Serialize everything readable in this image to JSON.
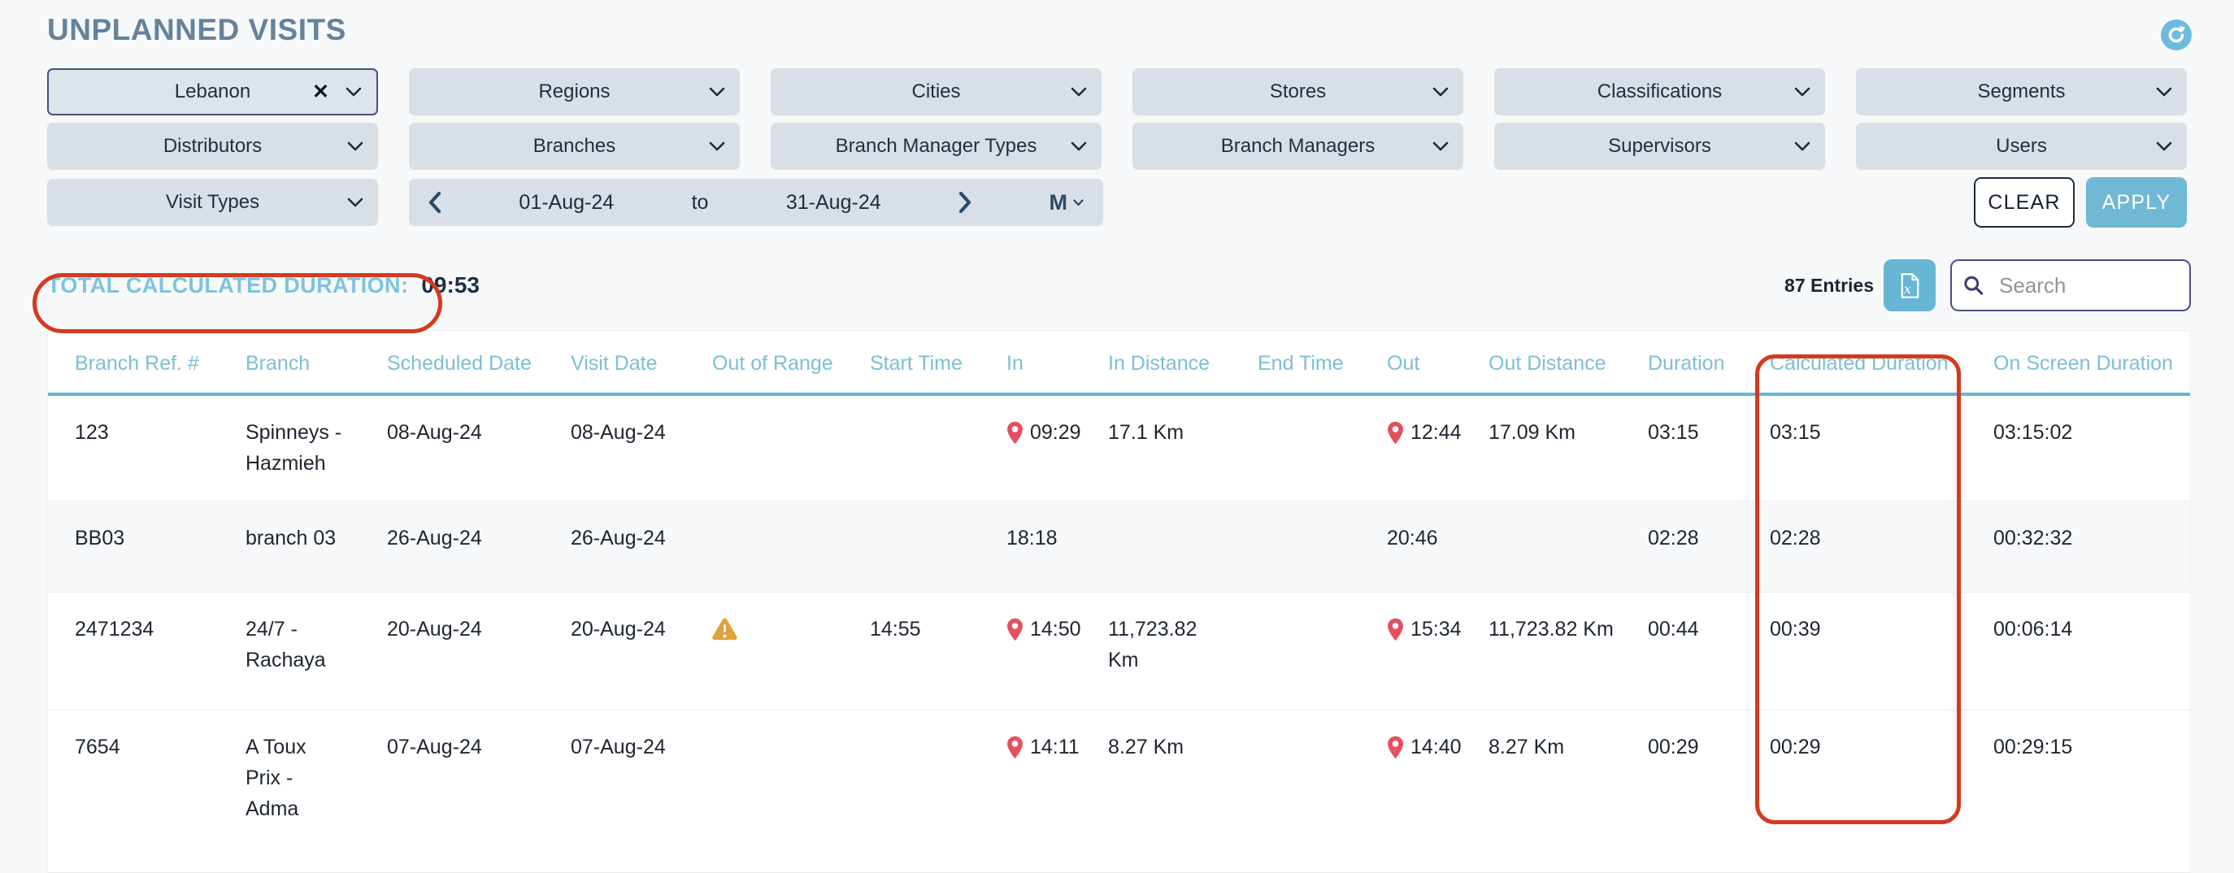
{
  "header": {
    "title": "UNPLANNED VISITS"
  },
  "filters": {
    "row1": [
      {
        "label": "Lebanon",
        "selected": true,
        "clearable": true
      },
      {
        "label": "Regions"
      },
      {
        "label": "Cities"
      },
      {
        "label": "Stores"
      },
      {
        "label": "Classifications"
      },
      {
        "label": "Segments"
      }
    ],
    "row2": [
      {
        "label": "Distributors"
      },
      {
        "label": "Branches"
      },
      {
        "label": "Branch Manager Types"
      },
      {
        "label": "Branch Managers"
      },
      {
        "label": "Supervisors"
      },
      {
        "label": "Users"
      }
    ],
    "visit_types": {
      "label": "Visit Types"
    },
    "date_range": {
      "start": "01-Aug-24",
      "separator": "to",
      "end": "31-Aug-24",
      "mode": "M"
    },
    "clear_button": "CLEAR",
    "apply_button": "APPLY"
  },
  "summary": {
    "total_label": "TOTAL CALCULATED DURATION:",
    "total_value": "09:53"
  },
  "toolbar": {
    "entries": "87 Entries",
    "search_placeholder": "Search"
  },
  "table": {
    "columns": [
      "Branch Ref. #",
      "Branch",
      "Scheduled Date",
      "Visit Date",
      "Out of Range",
      "Start Time",
      "In",
      "In Distance",
      "End Time",
      "Out",
      "Out Distance",
      "Duration",
      "Calculated Duration",
      "On Screen Duration"
    ],
    "rows": [
      {
        "branch_ref": "123",
        "branch": "Spinneys - Hazmieh",
        "scheduled_date": "08-Aug-24",
        "visit_date": "08-Aug-24",
        "out_of_range": false,
        "start_time": "",
        "in_time": "09:29",
        "in_pin": true,
        "in_distance": "17.1 Km",
        "end_time": "",
        "out_time": "12:44",
        "out_pin": true,
        "out_distance": "17.09 Km",
        "duration": "03:15",
        "calculated_duration": "03:15",
        "on_screen_duration": "03:15:02"
      },
      {
        "branch_ref": "BB03",
        "branch": "branch 03",
        "scheduled_date": "26-Aug-24",
        "visit_date": "26-Aug-24",
        "out_of_range": false,
        "start_time": "",
        "in_time": "18:18",
        "in_pin": false,
        "in_distance": "",
        "end_time": "",
        "out_time": "20:46",
        "out_pin": false,
        "out_distance": "",
        "duration": "02:28",
        "calculated_duration": "02:28",
        "on_screen_duration": "00:32:32"
      },
      {
        "branch_ref": "2471234",
        "branch": "24/7 - Rachaya",
        "scheduled_date": "20-Aug-24",
        "visit_date": "20-Aug-24",
        "out_of_range": true,
        "start_time": "14:55",
        "in_time": "14:50",
        "in_pin": true,
        "in_distance": "11,723.82 Km",
        "end_time": "",
        "out_time": "15:34",
        "out_pin": true,
        "out_distance": "11,723.82 Km",
        "duration": "00:44",
        "calculated_duration": "00:39",
        "on_screen_duration": "00:06:14"
      },
      {
        "branch_ref": "7654",
        "branch": "A Toux Prix - Adma",
        "scheduled_date": "07-Aug-24",
        "visit_date": "07-Aug-24",
        "out_of_range": false,
        "start_time": "",
        "in_time": "14:11",
        "in_pin": true,
        "in_distance": "8.27 Km",
        "end_time": "",
        "out_time": "14:40",
        "out_pin": true,
        "out_distance": "8.27 Km",
        "duration": "00:29",
        "calculated_duration": "00:29",
        "on_screen_duration": "00:29:15"
      }
    ]
  },
  "icons": {
    "refresh": "refresh-icon",
    "chevron": "chevron-down-icon",
    "clear_selection": "clear-selection-icon",
    "prev": "chevron-left-icon",
    "next": "chevron-right-icon",
    "export": "excel-export-icon",
    "search": "search-icon",
    "pin": "location-pin-icon",
    "warning": "warning-triangle-icon"
  },
  "colors": {
    "accent_teal": "#62bac9",
    "header_blue": "#7abfd6",
    "annotation_red": "#d43a1f",
    "apply_blue": "#70b8d3",
    "pin_red": "#e4505f",
    "warning_amber": "#dfa33c",
    "title_blue": "#64829c"
  }
}
